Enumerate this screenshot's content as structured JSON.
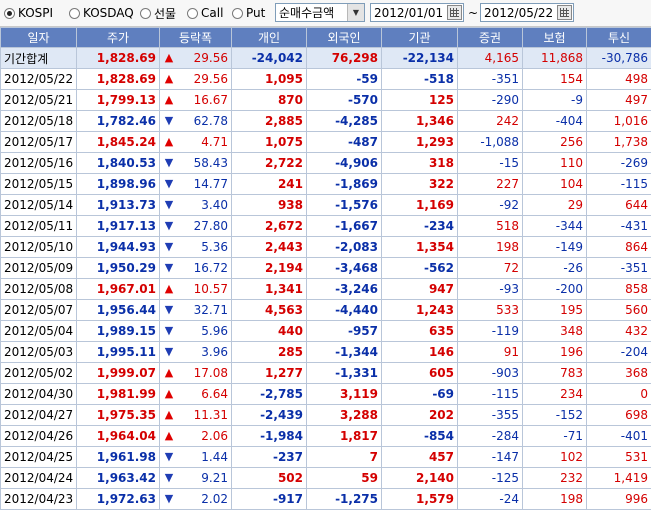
{
  "toolbar": {
    "markets": [
      {
        "label": "KOSPI",
        "selected": true
      },
      {
        "label": "KOSDAQ",
        "selected": false
      },
      {
        "label": "선물",
        "selected": false
      },
      {
        "label": "Call",
        "selected": false
      },
      {
        "label": "Put",
        "selected": false
      }
    ],
    "metric_select": "순매수금액",
    "start_date": "2012/01/01",
    "range_sep": "~",
    "end_date": "2012/05/22"
  },
  "table": {
    "columns": [
      "일자",
      "주가",
      "등락폭",
      "개인",
      "외국인",
      "기관",
      "증권",
      "보험",
      "투신"
    ],
    "rows": [
      {
        "date": "기간합계",
        "price": "1,828.69",
        "dir": "up",
        "chg": "29.56",
        "ind": "-24,042",
        "frn": "76,298",
        "inst": "-22,134",
        "sec": "4,165",
        "ins": "11,868",
        "trust": "-30,786"
      },
      {
        "date": "2012/05/22",
        "price": "1,828.69",
        "dir": "up",
        "chg": "29.56",
        "ind": "1,095",
        "frn": "-59",
        "inst": "-518",
        "sec": "-351",
        "ins": "154",
        "trust": "498"
      },
      {
        "date": "2012/05/21",
        "price": "1,799.13",
        "dir": "up",
        "chg": "16.67",
        "ind": "870",
        "frn": "-570",
        "inst": "125",
        "sec": "-290",
        "ins": "-9",
        "trust": "497"
      },
      {
        "date": "2012/05/18",
        "price": "1,782.46",
        "dir": "down",
        "chg": "62.78",
        "ind": "2,885",
        "frn": "-4,285",
        "inst": "1,346",
        "sec": "242",
        "ins": "-404",
        "trust": "1,016"
      },
      {
        "date": "2012/05/17",
        "price": "1,845.24",
        "dir": "up",
        "chg": "4.71",
        "ind": "1,075",
        "frn": "-487",
        "inst": "1,293",
        "sec": "-1,088",
        "ins": "256",
        "trust": "1,738"
      },
      {
        "date": "2012/05/16",
        "price": "1,840.53",
        "dir": "down",
        "chg": "58.43",
        "ind": "2,722",
        "frn": "-4,906",
        "inst": "318",
        "sec": "-15",
        "ins": "110",
        "trust": "-269"
      },
      {
        "date": "2012/05/15",
        "price": "1,898.96",
        "dir": "down",
        "chg": "14.77",
        "ind": "241",
        "frn": "-1,869",
        "inst": "322",
        "sec": "227",
        "ins": "104",
        "trust": "-115"
      },
      {
        "date": "2012/05/14",
        "price": "1,913.73",
        "dir": "down",
        "chg": "3.40",
        "ind": "938",
        "frn": "-1,576",
        "inst": "1,169",
        "sec": "-92",
        "ins": "29",
        "trust": "644"
      },
      {
        "date": "2012/05/11",
        "price": "1,917.13",
        "dir": "down",
        "chg": "27.80",
        "ind": "2,672",
        "frn": "-1,667",
        "inst": "-234",
        "sec": "518",
        "ins": "-344",
        "trust": "-431"
      },
      {
        "date": "2012/05/10",
        "price": "1,944.93",
        "dir": "down",
        "chg": "5.36",
        "ind": "2,443",
        "frn": "-2,083",
        "inst": "1,354",
        "sec": "198",
        "ins": "-149",
        "trust": "864"
      },
      {
        "date": "2012/05/09",
        "price": "1,950.29",
        "dir": "down",
        "chg": "16.72",
        "ind": "2,194",
        "frn": "-3,468",
        "inst": "-562",
        "sec": "72",
        "ins": "-26",
        "trust": "-351"
      },
      {
        "date": "2012/05/08",
        "price": "1,967.01",
        "dir": "up",
        "chg": "10.57",
        "ind": "1,341",
        "frn": "-3,246",
        "inst": "947",
        "sec": "-93",
        "ins": "-200",
        "trust": "858"
      },
      {
        "date": "2012/05/07",
        "price": "1,956.44",
        "dir": "down",
        "chg": "32.71",
        "ind": "4,563",
        "frn": "-4,440",
        "inst": "1,243",
        "sec": "533",
        "ins": "195",
        "trust": "560"
      },
      {
        "date": "2012/05/04",
        "price": "1,989.15",
        "dir": "down",
        "chg": "5.96",
        "ind": "440",
        "frn": "-957",
        "inst": "635",
        "sec": "-119",
        "ins": "348",
        "trust": "432"
      },
      {
        "date": "2012/05/03",
        "price": "1,995.11",
        "dir": "down",
        "chg": "3.96",
        "ind": "285",
        "frn": "-1,344",
        "inst": "146",
        "sec": "91",
        "ins": "196",
        "trust": "-204"
      },
      {
        "date": "2012/05/02",
        "price": "1,999.07",
        "dir": "up",
        "chg": "17.08",
        "ind": "1,277",
        "frn": "-1,331",
        "inst": "605",
        "sec": "-903",
        "ins": "783",
        "trust": "368"
      },
      {
        "date": "2012/04/30",
        "price": "1,981.99",
        "dir": "up",
        "chg": "6.64",
        "ind": "-2,785",
        "frn": "3,119",
        "inst": "-69",
        "sec": "-115",
        "ins": "234",
        "trust": "0"
      },
      {
        "date": "2012/04/27",
        "price": "1,975.35",
        "dir": "up",
        "chg": "11.31",
        "ind": "-2,439",
        "frn": "3,288",
        "inst": "202",
        "sec": "-355",
        "ins": "-152",
        "trust": "698"
      },
      {
        "date": "2012/04/26",
        "price": "1,964.04",
        "dir": "up",
        "chg": "2.06",
        "ind": "-1,984",
        "frn": "1,817",
        "inst": "-854",
        "sec": "-284",
        "ins": "-71",
        "trust": "-401"
      },
      {
        "date": "2012/04/25",
        "price": "1,961.98",
        "dir": "down",
        "chg": "1.44",
        "ind": "-237",
        "frn": "7",
        "inst": "457",
        "sec": "-147",
        "ins": "102",
        "trust": "531"
      },
      {
        "date": "2012/04/24",
        "price": "1,963.42",
        "dir": "down",
        "chg": "9.21",
        "ind": "502",
        "frn": "59",
        "inst": "2,140",
        "sec": "-125",
        "ins": "232",
        "trust": "1,419"
      },
      {
        "date": "2012/04/23",
        "price": "1,972.63",
        "dir": "down",
        "chg": "2.02",
        "ind": "-917",
        "frn": "-1,275",
        "inst": "1,579",
        "sec": "-24",
        "ins": "198",
        "trust": "996"
      }
    ]
  },
  "colors": {
    "header_bg": "#5f7fbf",
    "total_row_bg": "#dfe8f5",
    "up": "#d40000",
    "down": "#0a2fa8"
  },
  "icons": {
    "up": "triangle-up-icon",
    "down": "triangle-down-icon",
    "calendar": "calendar-icon",
    "dropdown": "chevron-down-icon"
  }
}
